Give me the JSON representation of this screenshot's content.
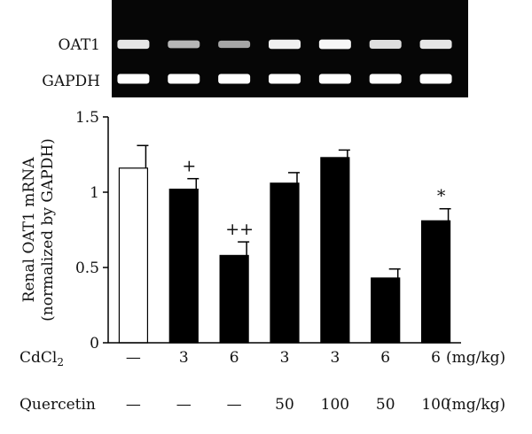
{
  "blot": {
    "rows": [
      {
        "label": "OAT1",
        "intensities": [
          0.85,
          0.55,
          0.45,
          0.9,
          0.95,
          0.8,
          0.85
        ]
      },
      {
        "label": "GAPDH",
        "intensities": [
          1,
          1,
          1,
          1,
          1,
          1,
          1
        ]
      }
    ]
  },
  "chart_data": {
    "type": "bar",
    "ylabel_line1": "Renal OAT1 mRNA",
    "ylabel_line2": "(normalized by GAPDH)",
    "ylim": [
      0,
      1.5
    ],
    "yticks": [
      "0",
      "0.5",
      "1",
      "1.5"
    ],
    "ytick_values": [
      0,
      0.5,
      1,
      1.5
    ],
    "grid": false,
    "values": [
      1.16,
      1.02,
      0.58,
      1.06,
      1.23,
      0.43,
      0.81
    ],
    "errors": [
      0.15,
      0.07,
      0.09,
      0.07,
      0.05,
      0.06,
      0.08
    ],
    "fills": [
      "#ffffff",
      "#000000",
      "#000000",
      "#000000",
      "#000000",
      "#000000",
      "#000000"
    ],
    "significance": [
      "",
      "+",
      "++",
      "",
      "",
      "",
      "*"
    ]
  },
  "conditions": {
    "rows": [
      {
        "name_main": "CdCl",
        "name_sub": "2",
        "values": [
          "—",
          "3",
          "6",
          "3",
          "3",
          "6",
          "6"
        ],
        "unit": "(mg/kg)"
      },
      {
        "name_main": "Quercetin",
        "name_sub": "",
        "values": [
          "—",
          "—",
          "—",
          "50",
          "100",
          "50",
          "100"
        ],
        "unit": "(mg/kg)"
      }
    ]
  }
}
